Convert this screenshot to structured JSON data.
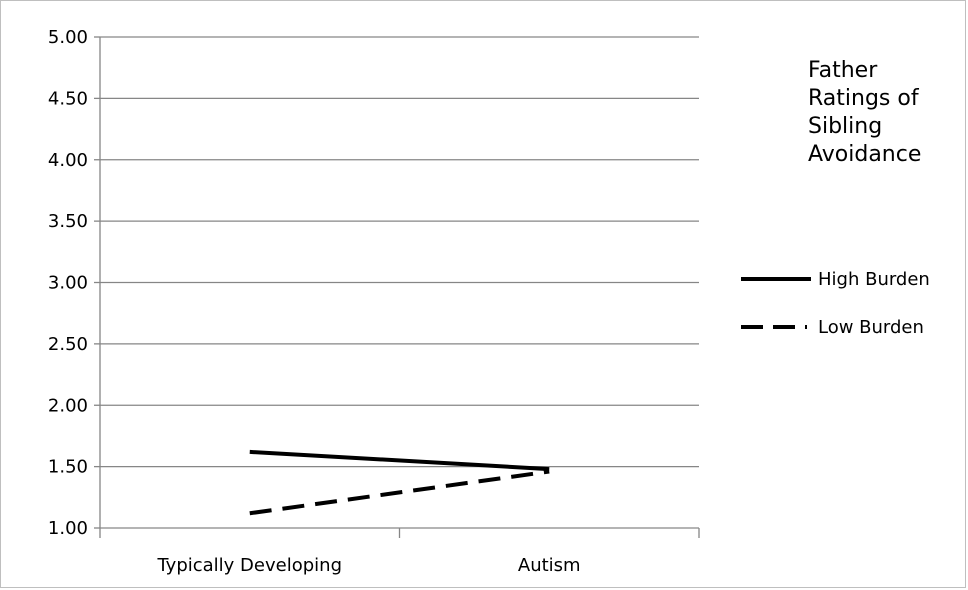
{
  "chart_data": {
    "type": "line",
    "title": "Father Ratings of Sibling Avoidance",
    "title_lines": [
      "Father",
      "Ratings of",
      "Sibling",
      "Avoidance"
    ],
    "xlabel": "",
    "ylabel": "",
    "categories": [
      "Typically Developing",
      "Autism"
    ],
    "ylim": [
      1.0,
      5.0
    ],
    "yticks": [
      "1.00",
      "1.50",
      "2.00",
      "2.50",
      "3.00",
      "3.50",
      "4.00",
      "4.50",
      "5.00"
    ],
    "grid": true,
    "legend_position": "right",
    "series": [
      {
        "name": "High Burden",
        "values": [
          1.62,
          1.48
        ],
        "style": "solid",
        "color": "#000000"
      },
      {
        "name": "Low Burden",
        "values": [
          1.12,
          1.46
        ],
        "style": "dashed",
        "color": "#000000"
      }
    ]
  }
}
